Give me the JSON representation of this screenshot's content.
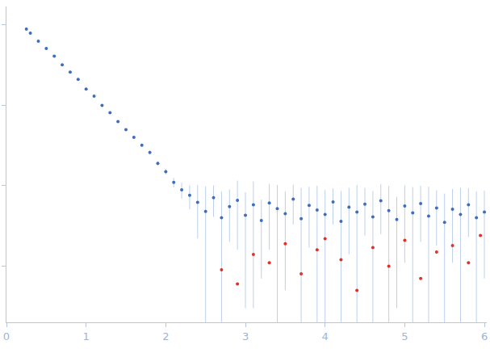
{
  "chart_data": {
    "type": "scatter",
    "log": "y",
    "grid": false,
    "tick_labels": "x",
    "xlim": [
      0,
      6.03
    ],
    "xticks": [
      0,
      1,
      2,
      3,
      4,
      5,
      6
    ],
    "ylim": [
      0.0002,
      1.7
    ],
    "yticks": [
      0.001,
      0.01,
      0.1,
      1
    ],
    "series": [
      {
        "color": "#3d6dbf",
        "marker": "circle",
        "x": [
          0.25,
          0.3,
          0.4,
          0.5,
          0.6,
          0.7,
          0.8,
          0.9,
          1.0,
          1.1,
          1.2,
          1.3,
          1.4,
          1.5,
          1.6,
          1.7,
          1.8,
          1.9,
          2.0,
          2.1,
          2.2,
          2.3,
          2.4,
          2.5,
          2.6,
          2.7,
          2.8,
          2.9,
          3.0,
          3.1,
          3.2,
          3.3,
          3.4,
          3.5,
          3.6,
          3.7,
          3.8,
          3.9,
          4.0,
          4.1,
          4.2,
          4.3,
          4.4,
          4.5,
          4.6,
          4.7,
          4.8,
          4.9,
          5.0,
          5.1,
          5.2,
          5.3,
          5.4,
          5.5,
          5.6,
          5.7,
          5.8,
          5.9,
          6.0
        ],
        "values": [
          0.89,
          0.79,
          0.63,
          0.51,
          0.41,
          0.32,
          0.26,
          0.21,
          0.16,
          0.13,
          0.1,
          0.081,
          0.063,
          0.05,
          0.04,
          0.032,
          0.026,
          0.019,
          0.015,
          0.011,
          0.0089,
          0.0076,
          0.0062,
          0.0048,
          0.0071,
          0.004,
          0.0055,
          0.0066,
          0.0043,
          0.0058,
          0.0037,
          0.0061,
          0.0052,
          0.0045,
          0.0068,
          0.0039,
          0.0057,
          0.005,
          0.0044,
          0.0063,
          0.0036,
          0.0054,
          0.0047,
          0.0059,
          0.0041,
          0.0065,
          0.0049,
          0.0038,
          0.0056,
          0.0046,
          0.006,
          0.0042,
          0.0053,
          0.0035,
          0.0051,
          0.0044,
          0.0058,
          0.004,
          0.0047
        ],
        "errors": [
          0.02,
          0.015,
          0.01,
          0.008,
          0.006,
          0.005,
          0.004,
          0.003,
          0.003,
          0.0025,
          0.002,
          0.002,
          0.0018,
          0.0015,
          0.0015,
          0.0014,
          0.0013,
          0.0012,
          0.0012,
          0.0015,
          0.002,
          0.0025,
          0.004,
          0.005,
          0.003,
          0.0045,
          0.0035,
          0.005,
          0.004,
          0.0055,
          0.003,
          0.0045,
          0.005,
          0.004,
          0.0035,
          0.0055,
          0.004,
          0.005,
          0.0045,
          0.003,
          0.005,
          0.004,
          0.0055,
          0.0035,
          0.0045,
          0.004,
          0.005,
          0.0035,
          0.0045,
          0.005,
          0.004,
          0.0055,
          0.0035,
          0.0045,
          0.004,
          0.005,
          0.0035,
          0.0045,
          0.004
        ]
      },
      {
        "color": "#e0302a",
        "marker": "circle",
        "x": [
          2.7,
          2.9,
          3.1,
          3.3,
          3.5,
          3.7,
          3.9,
          4.0,
          4.2,
          4.4,
          4.6,
          4.8,
          5.0,
          5.2,
          5.4,
          5.6,
          5.8,
          5.95
        ],
        "values": [
          0.0009,
          0.0006,
          0.0014,
          0.0011,
          0.0019,
          0.0008,
          0.0016,
          0.0022,
          0.0012,
          0.0005,
          0.0017,
          0.001,
          0.0021,
          0.0007,
          0.0015,
          0.0018,
          0.0011,
          0.0024
        ]
      }
    ]
  }
}
